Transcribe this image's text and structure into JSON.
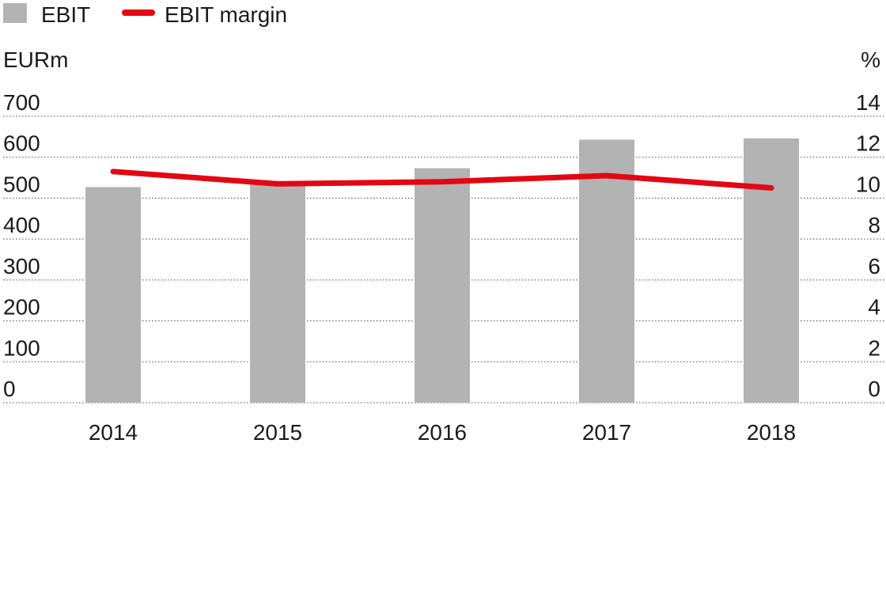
{
  "chart_data": {
    "type": "bar",
    "categories": [
      "2014",
      "2015",
      "2016",
      "2017",
      "2018"
    ],
    "series": [
      {
        "name": "EBIT",
        "type": "bar",
        "axis": "left",
        "color": "#b3b3b3",
        "values": [
          527,
          538,
          573,
          643,
          646
        ]
      },
      {
        "name": "EBIT margin",
        "type": "line",
        "axis": "right",
        "color": "#e30613",
        "values": [
          11.3,
          10.7,
          10.8,
          11.1,
          10.5
        ]
      }
    ],
    "ylabel_left": "EURm",
    "ylabel_right": "%",
    "ylim_left": [
      0,
      700
    ],
    "ylim_right": [
      0,
      14
    ],
    "yticks_left": [
      "0",
      "100",
      "200",
      "300",
      "400",
      "500",
      "600",
      "700"
    ],
    "yticks_right": [
      "0",
      "2",
      "4",
      "6",
      "8",
      "10",
      "12",
      "14"
    ],
    "grid": "horizontal-dotted",
    "legend_position": "top-left"
  }
}
